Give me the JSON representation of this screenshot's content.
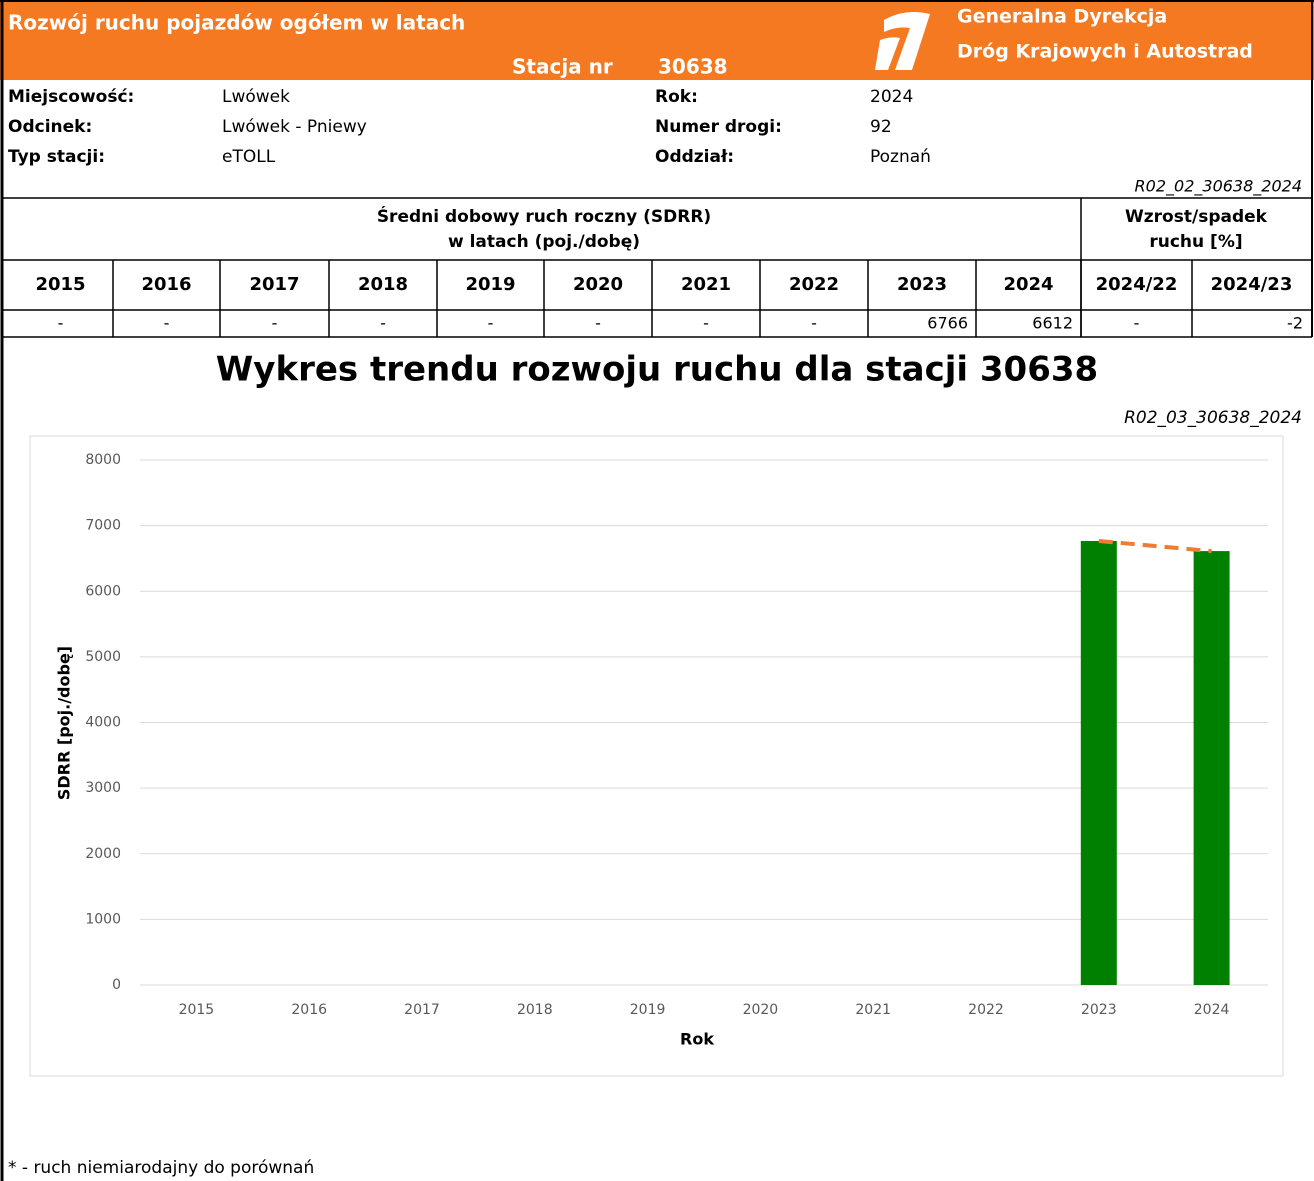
{
  "header": {
    "title": "Rozwój ruchu pojazdów ogółem w latach",
    "station_label": "Stacja nr",
    "station": "30638",
    "org_line1": "Generalna Dyrekcja",
    "org_line2": "Dróg Krajowych i Autostrad"
  },
  "info": [
    {
      "label": "Miejscowość:",
      "value": "Lwówek"
    },
    {
      "label": "Odcinek:",
      "value": "Lwówek - Pniewy"
    },
    {
      "label": "Typ stacji:",
      "value": "eTOLL"
    },
    {
      "label": "Rok:",
      "value": "2024"
    },
    {
      "label": "Numer drogi:",
      "value": "92"
    },
    {
      "label": "Oddział:",
      "value": "Poznań"
    }
  ],
  "table": {
    "code": "R02_02_30638_2024",
    "group1": [
      "Średni dobowy ruch roczny (SDRR)",
      "w latach (poj./dobę)"
    ],
    "group2": [
      "Wzrost/spadek",
      "ruchu [%]"
    ],
    "columns": [
      "2015",
      "2016",
      "2017",
      "2018",
      "2019",
      "2020",
      "2021",
      "2022",
      "2023",
      "2024",
      "2024/22",
      "2024/23"
    ],
    "values": [
      "-",
      "-",
      "-",
      "-",
      "-",
      "-",
      "-",
      "-",
      "6766",
      "6612",
      "-",
      "-2"
    ]
  },
  "chart_code": "R02_03_30638_2024",
  "chart_data": {
    "type": "bar",
    "title": "Wykres trendu rozwoju ruchu dla stacji 30638",
    "x_label": "Rok",
    "y_label": "SDRR [poj./dobę]",
    "categories": [
      "2015",
      "2016",
      "2017",
      "2018",
      "2019",
      "2020",
      "2021",
      "2022",
      "2023",
      "2024"
    ],
    "values": [
      null,
      null,
      null,
      null,
      null,
      null,
      null,
      null,
      6766,
      6612
    ],
    "color": "#008000",
    "trendline": true,
    "trend_color": "#ed7d31",
    "ylim": [
      0,
      8000
    ],
    "yticks": [
      0,
      1000,
      2000,
      3000,
      4000,
      5000,
      6000,
      7000,
      8000
    ],
    "grid": true
  },
  "footnote": "* - ruch niemiarodajny do porównań"
}
